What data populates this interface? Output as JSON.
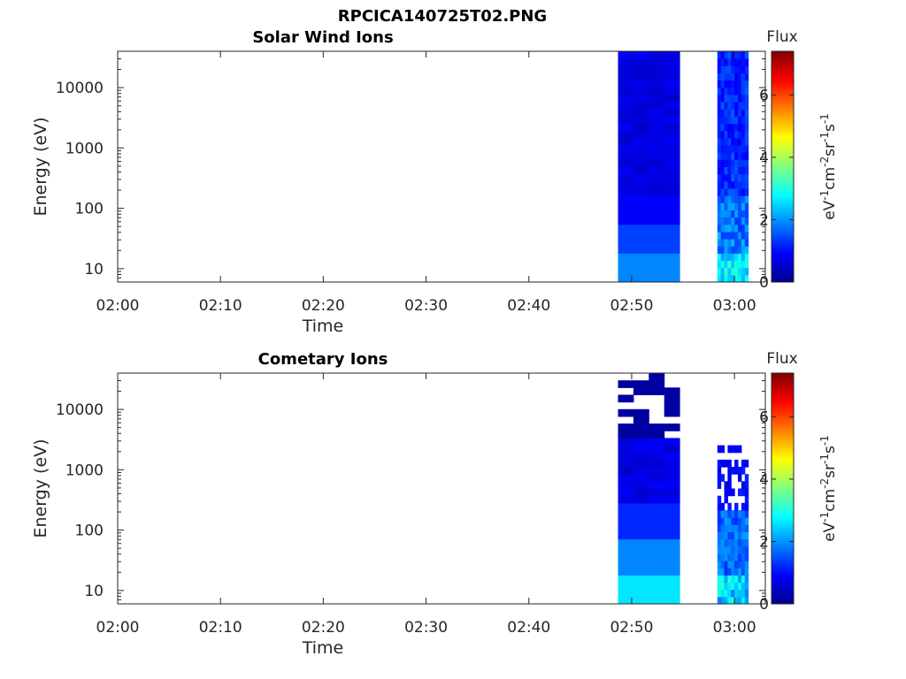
{
  "figure_title": "RPCICA140725T02.PNG",
  "chart_data": [
    {
      "type": "heatmap",
      "title": "Solar Wind Ions",
      "xlabel": "Time",
      "ylabel": "Energy (eV)",
      "x_ticks": [
        "02:00",
        "02:10",
        "02:20",
        "02:30",
        "02:40",
        "02:50",
        "03:00"
      ],
      "x_range": [
        "02:00",
        "03:03"
      ],
      "y_scale": "log",
      "y_ticks": [
        10,
        100,
        1000,
        10000
      ],
      "y_range": [
        6,
        40000
      ],
      "colorbar": {
        "label": "Flux",
        "units": "eV-1cm-2sr-1s-1",
        "ticks": [
          0,
          2,
          4,
          6
        ],
        "range": [
          0,
          7.4
        ],
        "colormap": "jet"
      },
      "data_blocks": [
        {
          "t_start": "02:48:40",
          "t_end": "02:54:40",
          "description": "low flux, mostly dark blue at high energies, rising to cyan-blue near 10 eV"
        },
        {
          "t_start": "02:58:20",
          "t_end": "03:01:20",
          "description": "blue with cyan/green patches near 10-100 eV"
        }
      ]
    },
    {
      "type": "heatmap",
      "title": "Cometary Ions",
      "xlabel": "Time",
      "ylabel": "Energy (eV)",
      "x_ticks": [
        "02:00",
        "02:10",
        "02:20",
        "02:30",
        "02:40",
        "02:50",
        "03:00"
      ],
      "x_range": [
        "02:00",
        "03:03"
      ],
      "y_scale": "log",
      "y_ticks": [
        10,
        100,
        1000,
        10000
      ],
      "y_range": [
        6,
        40000
      ],
      "colorbar": {
        "label": "Flux",
        "units": "eV-1cm-2sr-1s-1",
        "ticks": [
          0,
          2,
          4,
          6
        ],
        "range": [
          0,
          7.4
        ],
        "colormap": "jet"
      },
      "data_blocks": [
        {
          "t_start": "02:48:40",
          "t_end": "02:54:40",
          "description": "striped dark blue above ~3000 eV, blue to cyan at low energies"
        },
        {
          "t_start": "02:58:20",
          "t_end": "03:01:20",
          "description": "sparse blue pixels below ~3000 eV, cyan/green near 10 eV"
        }
      ]
    }
  ]
}
